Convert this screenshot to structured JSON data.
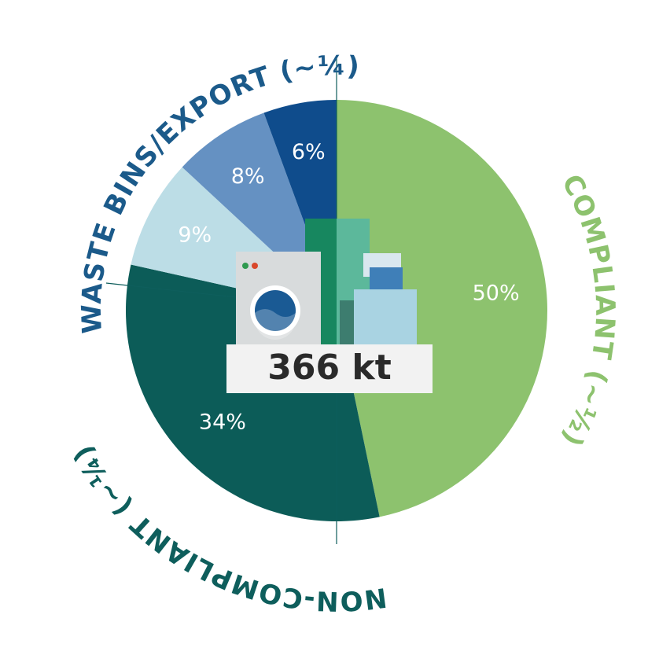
{
  "chart_data": {
    "type": "pie",
    "values": [
      50,
      34,
      9,
      8,
      6
    ],
    "value_labels": [
      "50%",
      "34%",
      "9%",
      "8%",
      "6%"
    ],
    "colors": [
      "#8dc26e",
      "#0c5c58",
      "#bcdde6",
      "#6591c2",
      "#0f4c8c"
    ],
    "center_label": "366 kt",
    "annotations": [
      {
        "text": "COMPLIANT (~½)",
        "color": "#8dc26e"
      },
      {
        "text": "NON-COMPLIANT (~¼)",
        "color": "#0e5e5c"
      },
      {
        "text": "WASTE BINS/EXPORT (~¼)",
        "color": "#1b5a8a"
      }
    ]
  }
}
